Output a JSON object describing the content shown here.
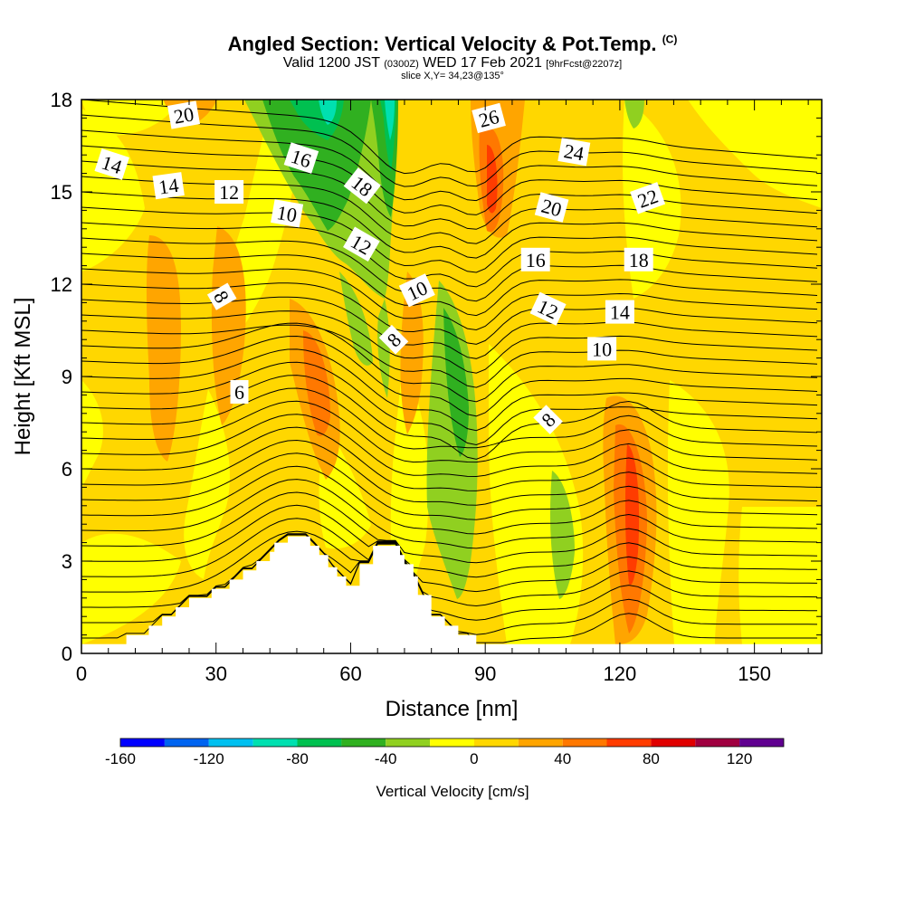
{
  "title": {
    "main": "Angled Section: Vertical Velocity & Pot.Temp.",
    "copyright": "(C)",
    "valid_prefix": "Valid 1200 JST",
    "utc": "(0300Z)",
    "valid_suffix": "WED 17 Feb 2021",
    "forecast": "[9hrFcst@2207z]",
    "slice": "slice X,Y= 34,23@135°"
  },
  "chart_data": {
    "type": "heatmap",
    "xlabel": "Distance [nm]",
    "ylabel": "Height [Kft MSL]",
    "xlim": [
      0,
      165
    ],
    "ylim": [
      0,
      18
    ],
    "x_ticks": [
      "0",
      "30",
      "60",
      "90",
      "120",
      "150"
    ],
    "x_tick_values": [
      0,
      30,
      60,
      90,
      120,
      150
    ],
    "y_ticks": [
      "0",
      "3",
      "6",
      "9",
      "12",
      "15",
      "18"
    ],
    "y_tick_values": [
      0,
      3,
      6,
      9,
      12,
      15,
      18
    ],
    "colorbar": {
      "title": "Vertical Velocity [cm/s]",
      "range": [
        -160,
        140
      ],
      "step": 20,
      "labels": [
        "-160",
        "-120",
        "-80",
        "-40",
        "0",
        "40",
        "80",
        "120"
      ],
      "label_values": [
        -160,
        -120,
        -80,
        -40,
        0,
        40,
        80,
        120
      ],
      "colors": [
        "#0000ff",
        "#0064f0",
        "#00c0f0",
        "#00e0b0",
        "#00c050",
        "#30b020",
        "#90d020",
        "#ffff00",
        "#ffd700",
        "#ffa500",
        "#ff7800",
        "#ff3c00",
        "#e00000",
        "#a00040",
        "#600090"
      ]
    },
    "terrain_kft": [
      [
        0,
        0.3
      ],
      [
        10,
        0.3
      ],
      [
        10,
        0.6
      ],
      [
        15,
        0.6
      ],
      [
        15,
        0.9
      ],
      [
        18,
        0.9
      ],
      [
        18,
        1.2
      ],
      [
        21,
        1.2
      ],
      [
        21,
        1.5
      ],
      [
        24,
        1.5
      ],
      [
        24,
        1.8
      ],
      [
        29,
        1.8
      ],
      [
        29,
        2.1
      ],
      [
        33,
        2.1
      ],
      [
        33,
        2.4
      ],
      [
        36,
        2.4
      ],
      [
        36,
        2.7
      ],
      [
        39,
        2.7
      ],
      [
        39,
        3.0
      ],
      [
        42,
        3.0
      ],
      [
        42,
        3.3
      ],
      [
        43,
        3.3
      ],
      [
        43,
        3.6
      ],
      [
        46,
        3.6
      ],
      [
        46,
        3.8
      ],
      [
        51,
        3.8
      ],
      [
        51,
        3.5
      ],
      [
        53,
        3.5
      ],
      [
        53,
        3.2
      ],
      [
        55,
        3.2
      ],
      [
        55,
        2.8
      ],
      [
        57,
        2.8
      ],
      [
        57,
        2.5
      ],
      [
        59,
        2.5
      ],
      [
        59,
        2.2
      ],
      [
        62,
        2.2
      ],
      [
        62,
        2.9
      ],
      [
        65,
        2.9
      ],
      [
        65,
        3.5
      ],
      [
        71,
        3.5
      ],
      [
        71,
        3.2
      ],
      [
        72,
        3.2
      ],
      [
        72,
        2.9
      ],
      [
        74,
        2.9
      ],
      [
        74,
        2.5
      ],
      [
        75,
        2.5
      ],
      [
        75,
        1.9
      ],
      [
        78,
        1.9
      ],
      [
        78,
        1.2
      ],
      [
        81,
        1.2
      ],
      [
        81,
        0.9
      ],
      [
        84,
        0.9
      ],
      [
        84,
        0.6
      ],
      [
        88,
        0.6
      ],
      [
        88,
        0.3
      ],
      [
        165,
        0.3
      ]
    ],
    "contour_labels": [
      {
        "text": "20",
        "x": 22.8,
        "y": 17.5,
        "angle": -10
      },
      {
        "text": "14",
        "x": 6.8,
        "y": 15.9,
        "angle": 18
      },
      {
        "text": "14",
        "x": 19.4,
        "y": 15.2,
        "angle": -8
      },
      {
        "text": "12",
        "x": 32.9,
        "y": 15.0,
        "angle": 0
      },
      {
        "text": "16",
        "x": 49.0,
        "y": 16.1,
        "angle": 18
      },
      {
        "text": "18",
        "x": 62.6,
        "y": 15.2,
        "angle": 38
      },
      {
        "text": "10",
        "x": 45.8,
        "y": 14.3,
        "angle": 10
      },
      {
        "text": "12",
        "x": 62.4,
        "y": 13.3,
        "angle": 30
      },
      {
        "text": "10",
        "x": 74.8,
        "y": 11.8,
        "angle": -25
      },
      {
        "text": "8",
        "x": 69.6,
        "y": 10.2,
        "angle": -45
      },
      {
        "text": "8",
        "x": 31.3,
        "y": 11.6,
        "angle": 60
      },
      {
        "text": "6",
        "x": 35.2,
        "y": 8.5,
        "angle": 0
      },
      {
        "text": "26",
        "x": 90.8,
        "y": 17.4,
        "angle": -15
      },
      {
        "text": "24",
        "x": 109.8,
        "y": 16.3,
        "angle": 10
      },
      {
        "text": "22",
        "x": 126.2,
        "y": 14.8,
        "angle": -20
      },
      {
        "text": "20",
        "x": 104.8,
        "y": 14.5,
        "angle": 15
      },
      {
        "text": "18",
        "x": 124.2,
        "y": 12.8,
        "angle": 0
      },
      {
        "text": "16",
        "x": 101.2,
        "y": 12.8,
        "angle": 0
      },
      {
        "text": "14",
        "x": 120.0,
        "y": 11.1,
        "angle": 0
      },
      {
        "text": "12",
        "x": 104.0,
        "y": 11.2,
        "angle": 25
      },
      {
        "text": "10",
        "x": 116.0,
        "y": 9.9,
        "angle": 0
      },
      {
        "text": "8",
        "x": 104.0,
        "y": 7.6,
        "angle": -45
      }
    ]
  }
}
